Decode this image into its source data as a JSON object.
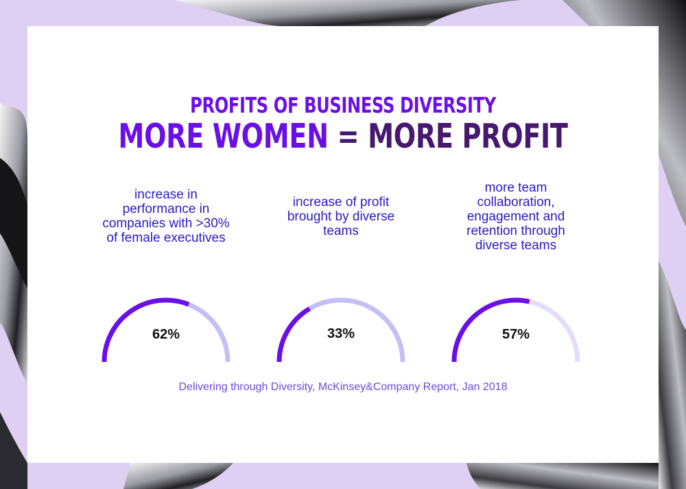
{
  "title": "PROFITS OF BUSINESS DIVERSITY",
  "headline_part1": "MORE WOMEN",
  "headline_part2": "= MORE PROFIT",
  "source": "Delivering through Diversity, McKinsey&Company Report, Jan 2018",
  "colors": {
    "accent": "#6a0fe8",
    "dark_purple": "#46186e",
    "gauge_fill": "#6a0fe8",
    "gauge_tracks": [
      "#c4bff5",
      "#c4bff5",
      "#e4dcfa"
    ],
    "text_blue": "#2a19c4",
    "background": "#ddd0f2"
  },
  "chart_data": {
    "type": "gauge",
    "title": "PROFITS OF BUSINESS DIVERSITY",
    "items": [
      {
        "label": "increase in\nperformance in\ncompanies with >30%\nof female executives",
        "value": 62,
        "display": "62%"
      },
      {
        "label": "increase of profit\nbrought by diverse\nteams",
        "value": 33,
        "display": "33%"
      },
      {
        "label": "more team\ncollaboration,\nengagement and\nretention through\ndiverse teams",
        "value": 57,
        "display": "57%"
      }
    ],
    "max": 100
  }
}
